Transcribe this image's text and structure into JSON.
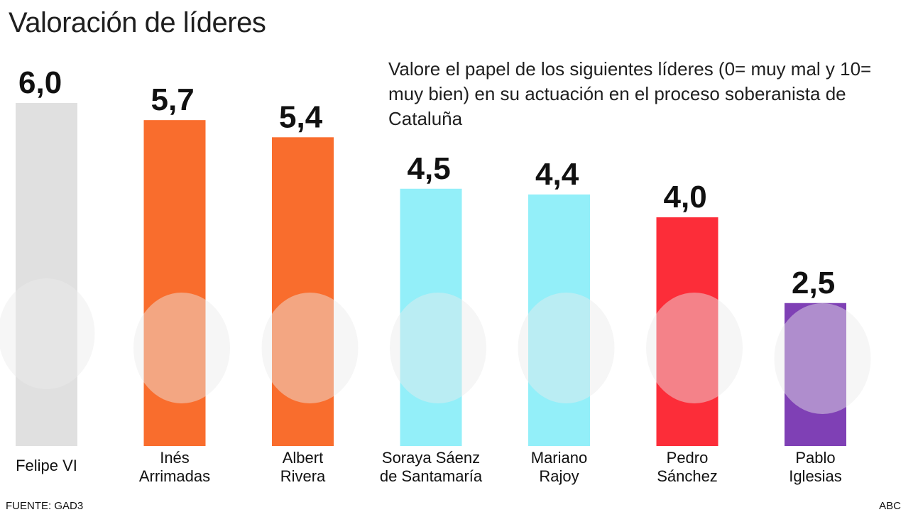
{
  "title": "Valoración de líderes",
  "question": "Valore el papel de los siguientes líderes (0= muy mal y 10= muy bien) en su actuación en el proceso soberanista de Cataluña",
  "source": "FUENTE: GAD3",
  "brand": "ABC",
  "chart_data": {
    "type": "bar",
    "categories": [
      [
        "Felipe VI"
      ],
      [
        "Inés",
        "Arrimadas"
      ],
      [
        "Albert",
        "Rivera"
      ],
      [
        "Soraya Sáenz",
        "de Santamaría"
      ],
      [
        "Mariano",
        "Rajoy"
      ],
      [
        "Pedro",
        "Sánchez"
      ],
      [
        "Pablo",
        "Iglesias"
      ]
    ],
    "values": [
      6.0,
      5.7,
      5.4,
      4.5,
      4.4,
      4.0,
      2.5
    ],
    "value_labels": [
      "6,0",
      "5,7",
      "5,4",
      "4,5",
      "4,4",
      "4,0",
      "2,5"
    ],
    "colors": [
      "#e0e0e0",
      "#f96d2d",
      "#f96d2d",
      "#93eff9",
      "#93eff9",
      "#fc2d39",
      "#7f40b5"
    ],
    "ylim": [
      0,
      10
    ],
    "grid": false
  }
}
